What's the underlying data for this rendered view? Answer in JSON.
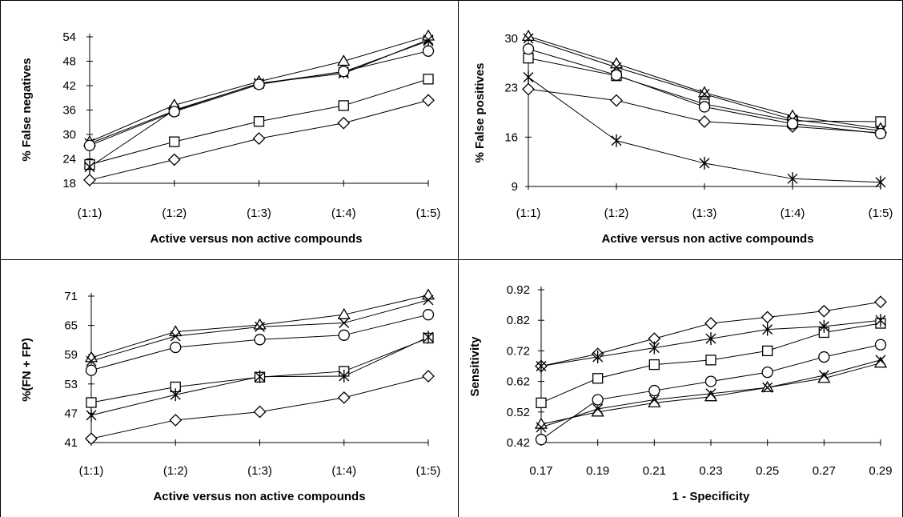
{
  "chart_data": [
    {
      "type": "line",
      "xlabel": "Active versus non active compounds",
      "ylabel": "% False negatives",
      "categories": [
        "(1:1)",
        "(1:2)",
        "(1:3)",
        "(1:4)",
        "(1:5)"
      ],
      "yticks": [
        18,
        24,
        30,
        36,
        42,
        48,
        54
      ],
      "ylim": [
        18,
        54
      ],
      "grid": false,
      "series": [
        {
          "marker": "diamond",
          "values": [
            18.8,
            23.8,
            29,
            32.8,
            38.4
          ]
        },
        {
          "marker": "square",
          "values": [
            22.6,
            28.2,
            33.2,
            37.1,
            43.6
          ]
        },
        {
          "marker": "asterisk",
          "values": [
            22,
            36,
            42.5,
            45.4,
            53
          ]
        },
        {
          "marker": "circle",
          "values": [
            27.3,
            35.6,
            42.3,
            45.5,
            50.5
          ]
        },
        {
          "marker": "x",
          "values": [
            27.8,
            35.8,
            42.6,
            45,
            53.3
          ]
        },
        {
          "marker": "triangle",
          "values": [
            28.2,
            37.2,
            43,
            48,
            54.2
          ]
        }
      ]
    },
    {
      "type": "line",
      "xlabel": "Active versus non active compounds",
      "ylabel": "% False positives",
      "categories": [
        "(1:1)",
        "(1:2)",
        "(1:3)",
        "(1:4)",
        "(1:5)"
      ],
      "yticks": [
        9,
        16,
        23,
        30
      ],
      "ylim": [
        9,
        30
      ],
      "grid": false,
      "series": [
        {
          "marker": "diamond",
          "values": [
            22.8,
            21.2,
            18.2,
            17.5,
            16.6
          ]
        },
        {
          "marker": "square",
          "values": [
            27.2,
            24.7,
            20.7,
            18.3,
            18.2
          ]
        },
        {
          "marker": "asterisk",
          "values": [
            24.5,
            15.5,
            12.3,
            10.1,
            9.6
          ]
        },
        {
          "marker": "circle",
          "values": [
            28.5,
            24.8,
            20.3,
            17.9,
            16.5
          ]
        },
        {
          "marker": "x",
          "values": [
            30,
            25.9,
            22.1,
            18.5,
            16.9
          ]
        },
        {
          "marker": "triangle",
          "values": [
            30.3,
            26.4,
            22.3,
            19,
            17.2
          ]
        }
      ]
    },
    {
      "type": "line",
      "xlabel": "Active versus non active compounds",
      "ylabel": "%(FN + FP)",
      "categories": [
        "(1:1)",
        "(1:2)",
        "(1:3)",
        "(1:4)",
        "(1:5)"
      ],
      "yticks": [
        41,
        47,
        53,
        59,
        65,
        71
      ],
      "ylim": [
        41,
        71
      ],
      "grid": false,
      "series": [
        {
          "marker": "diamond",
          "values": [
            41.8,
            45.6,
            47.3,
            50.2,
            54.6
          ]
        },
        {
          "marker": "square",
          "values": [
            49.2,
            52.4,
            54.4,
            55.6,
            62.4
          ]
        },
        {
          "marker": "asterisk",
          "values": [
            46.6,
            50.8,
            54.5,
            54.6,
            62.6
          ]
        },
        {
          "marker": "circle",
          "values": [
            55.8,
            60.5,
            62.1,
            63,
            67.2
          ]
        },
        {
          "marker": "x",
          "values": [
            57.7,
            62.8,
            64.7,
            65.5,
            70.2
          ]
        },
        {
          "marker": "triangle",
          "values": [
            58.4,
            63.7,
            65.1,
            67.2,
            71.2
          ]
        }
      ]
    },
    {
      "type": "line",
      "xlabel": "1 - Specificity",
      "ylabel": "Sensitivity",
      "categories": [
        "0.17",
        "0.19",
        "0.21",
        "0.23",
        "0.25",
        "0.27",
        "0.29"
      ],
      "yticks": [
        "0.42",
        "0.52",
        "0.62",
        "0.72",
        "0.82",
        "0.92"
      ],
      "ylim": [
        0.42,
        0.92
      ],
      "grid": false,
      "series": [
        {
          "marker": "diamond",
          "values": [
            0.67,
            0.71,
            0.76,
            0.81,
            0.83,
            0.85,
            0.88
          ]
        },
        {
          "marker": "asterisk",
          "values": [
            0.67,
            0.7,
            0.73,
            0.76,
            0.79,
            0.8,
            0.82
          ]
        },
        {
          "marker": "square",
          "values": [
            0.55,
            0.63,
            0.675,
            0.69,
            0.72,
            0.78,
            0.81
          ]
        },
        {
          "marker": "circle",
          "values": [
            0.43,
            0.56,
            0.59,
            0.62,
            0.65,
            0.7,
            0.74
          ]
        },
        {
          "marker": "x",
          "values": [
            0.47,
            0.53,
            0.56,
            0.58,
            0.6,
            0.64,
            0.69
          ]
        },
        {
          "marker": "triangle",
          "values": [
            0.48,
            0.52,
            0.55,
            0.57,
            0.6,
            0.63,
            0.68
          ]
        }
      ]
    }
  ]
}
